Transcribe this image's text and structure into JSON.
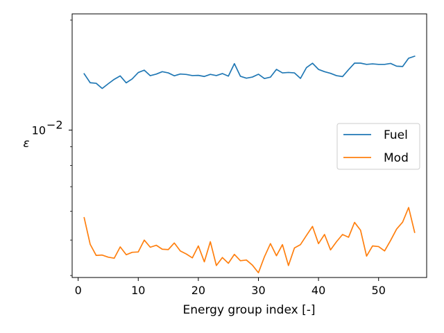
{
  "chart_data": {
    "type": "line",
    "xlabel": "Energy group index [-]",
    "ylabel": "ε",
    "yscale": "log",
    "xlim": [
      -1,
      58
    ],
    "ylim": [
      0.00395,
      0.0208
    ],
    "x_ticks": [
      0,
      10,
      20,
      30,
      40,
      50
    ],
    "y_major_ticks": [
      {
        "value": 0.01,
        "base": "10",
        "exponent": "−2"
      }
    ],
    "y_minor_ticks": [
      0.004,
      0.005,
      0.006,
      0.007,
      0.008,
      0.009,
      0.02
    ],
    "grid": false,
    "legend_position": "center-right",
    "x": [
      1,
      2,
      3,
      4,
      5,
      6,
      7,
      8,
      9,
      10,
      11,
      12,
      13,
      14,
      15,
      16,
      17,
      18,
      19,
      20,
      21,
      22,
      23,
      24,
      25,
      26,
      27,
      28,
      29,
      30,
      31,
      32,
      33,
      34,
      35,
      36,
      37,
      38,
      39,
      40,
      41,
      42,
      43,
      44,
      45,
      46,
      47,
      48,
      49,
      50,
      51,
      52,
      53,
      54,
      55,
      56
    ],
    "series": [
      {
        "name": "Fuel",
        "color": "#1f77b4",
        "values": [
          0.01426,
          0.01348,
          0.01343,
          0.013,
          0.01339,
          0.01377,
          0.01407,
          0.01347,
          0.01381,
          0.01437,
          0.01459,
          0.01409,
          0.01423,
          0.01445,
          0.01434,
          0.01408,
          0.01424,
          0.0142,
          0.0141,
          0.01412,
          0.01402,
          0.01421,
          0.0141,
          0.01428,
          0.01405,
          0.0152,
          0.01404,
          0.01387,
          0.01397,
          0.01422,
          0.01384,
          0.01396,
          0.01466,
          0.01434,
          0.01438,
          0.01434,
          0.01385,
          0.01483,
          0.01524,
          0.01466,
          0.01445,
          0.0143,
          0.01409,
          0.01401,
          0.01463,
          0.01525,
          0.01525,
          0.01513,
          0.01518,
          0.01513,
          0.01513,
          0.01522,
          0.01496,
          0.01493,
          0.01573,
          0.01593
        ]
      },
      {
        "name": "Mod",
        "color": "#ff7f0e",
        "values": [
          0.00576,
          0.00487,
          0.00454,
          0.00455,
          0.00449,
          0.00446,
          0.00479,
          0.00456,
          0.00463,
          0.00464,
          0.005,
          0.00478,
          0.00484,
          0.00472,
          0.00471,
          0.00491,
          0.00467,
          0.00458,
          0.00447,
          0.00482,
          0.00436,
          0.00495,
          0.00426,
          0.00448,
          0.00432,
          0.00457,
          0.00439,
          0.00441,
          0.00427,
          0.00407,
          0.0045,
          0.00489,
          0.00453,
          0.00486,
          0.00426,
          0.00476,
          0.00486,
          0.00515,
          0.00545,
          0.00489,
          0.00518,
          0.0047,
          0.00495,
          0.00518,
          0.00509,
          0.00559,
          0.00532,
          0.00452,
          0.00482,
          0.0048,
          0.00467,
          0.00499,
          0.00536,
          0.0056,
          0.00614,
          0.00525
        ]
      }
    ]
  }
}
